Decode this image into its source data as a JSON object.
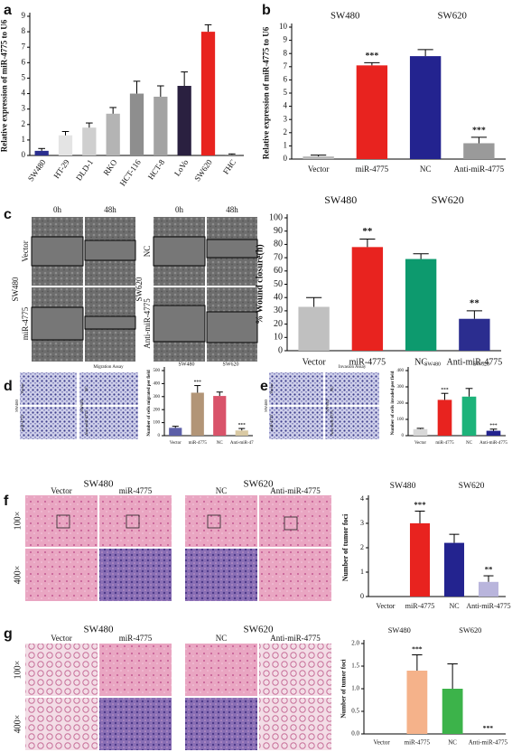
{
  "chart_data": [
    {
      "type": "bar",
      "panel": "a",
      "ylabel": "Relative expression of miR-4775 to U6",
      "categories": [
        "SW480",
        "HT-29",
        "DLD-1",
        "RKO",
        "HCT-116",
        "HCT-8",
        "LoVo",
        "SW620",
        "FHC"
      ],
      "values": [
        0.3,
        1.3,
        1.8,
        2.7,
        4.0,
        3.8,
        4.5,
        8.0,
        0.05
      ],
      "errors": [
        0.15,
        0.25,
        0.3,
        0.4,
        0.8,
        0.7,
        0.9,
        0.45,
        0.05
      ],
      "colors": [
        "#2b2f8f",
        "#e4e4e4",
        "#cfcfcf",
        "#b4b4b4",
        "#8e8e8e",
        "#a3a3a3",
        "#2a2040",
        "#e8231f",
        "#7a7a7a"
      ],
      "ylim": [
        0,
        9
      ],
      "yticks": [
        0,
        1,
        2,
        3,
        4,
        5,
        6,
        7,
        8,
        9
      ]
    },
    {
      "type": "bar",
      "panel": "b",
      "ylabel": "Relative expression of miR-4775 to U6",
      "groups": [
        "SW480",
        "SW620"
      ],
      "categories": [
        "Vector",
        "miR-4775",
        "NC",
        "Anti-miR-4775"
      ],
      "values": [
        0.2,
        7.1,
        7.8,
        1.2
      ],
      "errors": [
        0.1,
        0.2,
        0.5,
        0.45
      ],
      "significance": [
        null,
        "***",
        null,
        "***"
      ],
      "colors": [
        "#b8b8b8",
        "#e8231f",
        "#23238f",
        "#9a9a9a"
      ],
      "ylim": [
        0,
        10
      ],
      "yticks": [
        0,
        1,
        2,
        3,
        4,
        5,
        6,
        7,
        8,
        9,
        10
      ]
    },
    {
      "type": "bar",
      "panel": "c",
      "ylabel": "% Wound closure(h)",
      "groups": [
        "SW480",
        "SW620"
      ],
      "categories": [
        "Vector",
        "miR-4775",
        "NC",
        "Anti-miR-4775"
      ],
      "values": [
        33,
        78,
        69,
        24
      ],
      "errors": [
        7,
        6,
        4,
        6
      ],
      "significance": [
        null,
        "**",
        null,
        "**"
      ],
      "colors": [
        "#c0c0c0",
        "#e8231f",
        "#0d9a6e",
        "#2b2d8f"
      ],
      "ylim": [
        0,
        100
      ],
      "yticks": [
        0,
        10,
        20,
        30,
        40,
        50,
        60,
        70,
        80,
        90,
        100
      ]
    },
    {
      "type": "bar",
      "panel": "d",
      "ylabel": "Number of cells migrated per field",
      "groups": [
        "SW480",
        "SW620"
      ],
      "categories": [
        "Vector",
        "miR-4775",
        "NC",
        "Anti-miR-47"
      ],
      "values": [
        60,
        330,
        305,
        40
      ],
      "errors": [
        12,
        55,
        30,
        15
      ],
      "significance": [
        null,
        "***",
        null,
        "***"
      ],
      "colors": [
        "#5c5fa8",
        "#b29577",
        "#d9536a",
        "#d9c9a3"
      ],
      "ylim": [
        0,
        500
      ],
      "yticks": [
        0,
        100,
        200,
        300,
        400,
        500
      ]
    },
    {
      "type": "bar",
      "panel": "e",
      "ylabel": "Number of cells invaded per field",
      "groups": [
        "SW480",
        "SW620"
      ],
      "categories": [
        "Vector",
        "miR-4775",
        "NC",
        "Anti-miR-4775"
      ],
      "values": [
        40,
        220,
        240,
        30
      ],
      "errors": [
        5,
        40,
        50,
        10
      ],
      "significance": [
        null,
        "***",
        null,
        "***"
      ],
      "colors": [
        "#d8d8d8",
        "#e8231f",
        "#1db37a",
        "#23238f"
      ],
      "ylim": [
        0,
        400
      ],
      "yticks": [
        0,
        100,
        200,
        300,
        400
      ]
    },
    {
      "type": "bar",
      "panel": "f",
      "ylabel": "Number of tumor foci",
      "groups": [
        "SW480",
        "SW620"
      ],
      "categories": [
        "Vector",
        "miR-4775",
        "NC",
        "Anti-miR-4775"
      ],
      "values": [
        0,
        3.0,
        2.2,
        0.6
      ],
      "errors": [
        0,
        0.5,
        0.35,
        0.25
      ],
      "significance": [
        null,
        "***",
        null,
        "**"
      ],
      "colors": [
        "#cccccc",
        "#e8231f",
        "#23238f",
        "#b9b5dc"
      ],
      "ylim": [
        0,
        4
      ],
      "yticks": [
        0,
        1,
        2,
        3,
        4
      ]
    },
    {
      "type": "bar",
      "panel": "g",
      "ylabel": "Number of tumor foci",
      "groups": [
        "SW480",
        "SW620"
      ],
      "categories": [
        "Vector",
        "miR-4775",
        "NC",
        "Anti-miR-4775"
      ],
      "values": [
        0,
        1.4,
        1.0,
        0
      ],
      "errors": [
        0,
        0.35,
        0.55,
        0
      ],
      "significance": [
        null,
        "***",
        null,
        "***"
      ],
      "colors": [
        "#cccccc",
        "#f5b28a",
        "#3cb34a",
        "#cccccc"
      ],
      "ylim": [
        0,
        2.0
      ],
      "yticks": [
        {
          "value": 0,
          "label": "0.0"
        },
        {
          "value": 0.5,
          "label": "0.5"
        },
        {
          "value": 1,
          "label": "1.0"
        },
        {
          "value": 1.5,
          "label": "1.5"
        },
        {
          "value": 2,
          "label": "2.0"
        }
      ]
    }
  ],
  "images": {
    "c": {
      "times": [
        "0h",
        "48h",
        "0h",
        "48h"
      ],
      "groups": [
        "SW480",
        "SW620"
      ],
      "rows": [
        "Vector",
        "miR-4775",
        "NC",
        "Anti-miR-4775"
      ]
    },
    "d": {
      "title": "Migration Assay",
      "groups": [
        "SW480",
        "SW620"
      ],
      "rows": [
        "Vector",
        "miR-4775",
        "NC",
        "Anti-miR-4775"
      ]
    },
    "e": {
      "title": "Invasion Assay",
      "groups": [
        "SW480",
        "SW620"
      ],
      "rows": [
        "Vector",
        "miR-4775",
        "NC",
        "Anti-miR-4775"
      ]
    },
    "f": {
      "groups": [
        "SW480",
        "SW620"
      ],
      "columns": [
        "Vector",
        "miR-4775",
        "NC",
        "Anti-miR-4775"
      ],
      "magnifications": [
        "100×",
        "400×"
      ]
    },
    "g": {
      "groups": [
        "SW480",
        "SW620"
      ],
      "columns": [
        "Vector",
        "miR-4775",
        "NC",
        "Anti-miR-4775"
      ],
      "magnifications": [
        "100×",
        "400×"
      ]
    }
  }
}
